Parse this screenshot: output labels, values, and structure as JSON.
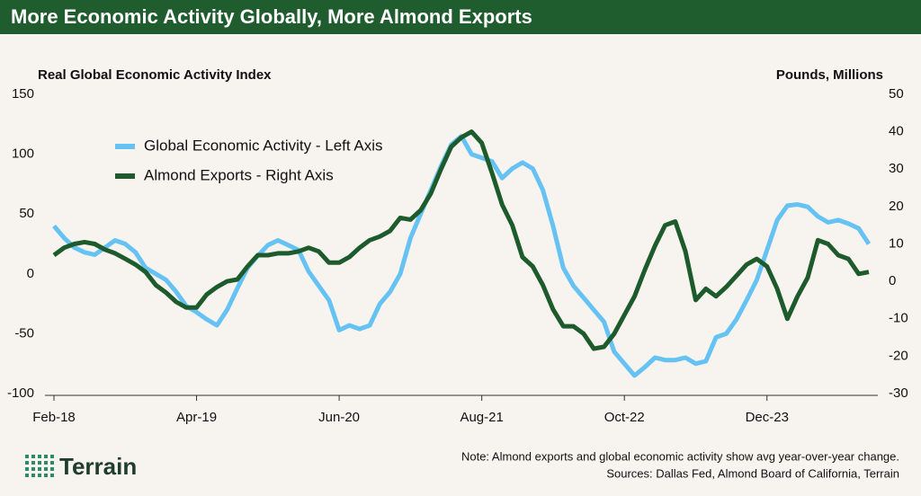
{
  "chart_data": {
    "type": "line",
    "title": "More Economic Activity Globally, More Almond Exports",
    "y_label": "Real Global Economic Activity Index",
    "y2_label": "Pounds, Millions",
    "categories": [
      "Feb-18",
      null,
      null,
      null,
      null,
      null,
      null,
      null,
      null,
      null,
      null,
      null,
      null,
      null,
      "Apr-19",
      null,
      null,
      null,
      null,
      null,
      null,
      null,
      null,
      null,
      null,
      null,
      null,
      null,
      "Jun-20",
      null,
      null,
      null,
      null,
      null,
      null,
      null,
      null,
      null,
      null,
      null,
      null,
      null,
      "Aug-21",
      null,
      null,
      null,
      null,
      null,
      null,
      null,
      null,
      null,
      null,
      null,
      null,
      null,
      "Oct-22",
      null,
      null,
      null,
      null,
      null,
      null,
      null,
      null,
      null,
      null,
      null,
      null,
      null,
      "Dec-23",
      null,
      null,
      null,
      null,
      null,
      null,
      null,
      null,
      null,
      null
    ],
    "series": [
      {
        "name": "Global Economic Activity - Left Axis",
        "color": "#66c2f2",
        "axis": "y",
        "values": [
          40,
          30,
          22,
          18,
          16,
          22,
          28,
          25,
          18,
          5,
          0,
          -5,
          -15,
          -27,
          -32,
          -38,
          -43,
          -30,
          -12,
          5,
          15,
          24,
          28,
          24,
          20,
          2,
          -10,
          -22,
          -47,
          -43,
          -46,
          -43,
          -25,
          -15,
          0,
          30,
          50,
          70,
          90,
          108,
          115,
          100,
          97,
          94,
          80,
          88,
          93,
          88,
          70,
          40,
          5,
          -10,
          -20,
          -30,
          -40,
          -65,
          -75,
          -85,
          -78,
          -70,
          -72,
          -72,
          -70,
          -75,
          -73,
          -53,
          -50,
          -38,
          -22,
          -5,
          20,
          45,
          57,
          58,
          56,
          48,
          43,
          45,
          42,
          38,
          25
        ]
      },
      {
        "name": "Almond Exports - Right Axis",
        "color": "#1e5b2c",
        "axis": "y2",
        "values": [
          7,
          9,
          10,
          10.5,
          10,
          8.5,
          7.5,
          6,
          4.5,
          2.5,
          -1,
          -3,
          -5.5,
          -7,
          -7,
          -3.5,
          -1.5,
          0,
          0.5,
          4,
          7,
          7,
          7.5,
          7.5,
          8,
          9,
          8,
          5,
          5,
          6.5,
          9,
          11,
          12,
          13.5,
          17,
          16.5,
          19,
          23.5,
          30,
          36,
          38.5,
          40,
          37,
          29,
          20.5,
          15,
          6.5,
          4,
          -1,
          -7.5,
          -12,
          -12,
          -14,
          -18,
          -17.5,
          -14,
          -9,
          -4,
          3,
          9.5,
          15,
          16,
          8,
          -5,
          -2,
          -4,
          -1.5,
          1.5,
          4.5,
          6,
          4,
          -2,
          -10,
          -4,
          1,
          11,
          10,
          7,
          6,
          2,
          2.5
        ]
      }
    ],
    "ylim": [
      -100,
      150
    ],
    "yticks": [
      -100,
      -50,
      0,
      50,
      100,
      150
    ],
    "y2lim": [
      -30,
      50
    ],
    "y2ticks": [
      -30,
      -20,
      -10,
      0,
      10,
      20,
      30,
      40,
      50
    ],
    "grid": false
  },
  "note": "Note: Almond exports and global economic activity show avg year-over-year change.",
  "sources": "Sources: Dallas Fed, Almond Board of California, Terrain",
  "logo": "Terrain"
}
